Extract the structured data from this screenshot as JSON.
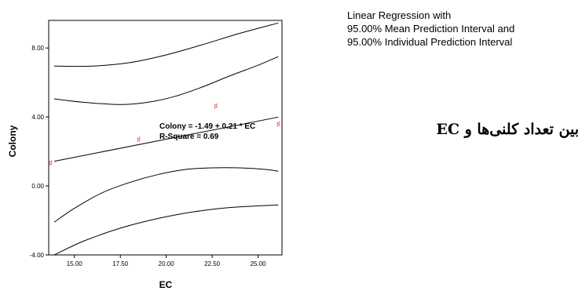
{
  "chart_data": {
    "type": "scatter",
    "xlabel": "EC",
    "ylabel": "Colony",
    "xlim": [
      13.6,
      26.3
    ],
    "ylim": [
      -4.0,
      9.6
    ],
    "x_ticks": [
      15.0,
      17.5,
      20.0,
      22.5,
      25.0
    ],
    "x_tick_labels": [
      "15.00",
      "17.50",
      "20.00",
      "22.50",
      "25.00"
    ],
    "y_ticks": [
      -4.0,
      0.0,
      4.0,
      8.0
    ],
    "y_tick_labels": [
      "-4.00",
      "0.00",
      "4.00",
      "8.00"
    ],
    "points": [
      {
        "x": 13.7,
        "y": 1.35
      },
      {
        "x": 18.5,
        "y": 2.7
      },
      {
        "x": 22.7,
        "y": 4.65
      },
      {
        "x": 26.1,
        "y": 3.6
      }
    ],
    "point_color": "#e8332b",
    "point_marker": "♯",
    "fit": {
      "intercept": -1.49,
      "slope": 0.21
    },
    "equation_label": "Colony = -1.49 + 0.21 * EC",
    "r_square_label": "R-Square = 0.69",
    "mean_interval_upper": [
      [
        13.9,
        5.05
      ],
      [
        15.5,
        4.85
      ],
      [
        17.5,
        4.72
      ],
      [
        19.0,
        4.85
      ],
      [
        20.5,
        5.2
      ],
      [
        22.0,
        5.75
      ],
      [
        23.5,
        6.4
      ],
      [
        25.0,
        7.0
      ],
      [
        26.1,
        7.5
      ]
    ],
    "mean_interval_lower": [
      [
        13.9,
        -2.1
      ],
      [
        15.0,
        -1.3
      ],
      [
        16.5,
        -0.4
      ],
      [
        18.0,
        0.2
      ],
      [
        19.5,
        0.65
      ],
      [
        21.0,
        0.95
      ],
      [
        22.5,
        1.05
      ],
      [
        24.0,
        1.05
      ],
      [
        25.5,
        0.95
      ],
      [
        26.1,
        0.85
      ]
    ],
    "prediction_interval_upper": [
      [
        13.9,
        6.95
      ],
      [
        16.0,
        6.95
      ],
      [
        18.0,
        7.15
      ],
      [
        20.0,
        7.6
      ],
      [
        22.0,
        8.2
      ],
      [
        24.0,
        8.85
      ],
      [
        26.1,
        9.45
      ]
    ],
    "prediction_interval_lower": [
      [
        13.9,
        -4.0
      ],
      [
        15.5,
        -3.2
      ],
      [
        17.5,
        -2.45
      ],
      [
        19.5,
        -1.9
      ],
      [
        21.5,
        -1.5
      ],
      [
        23.5,
        -1.25
      ],
      [
        26.1,
        -1.1
      ]
    ]
  },
  "legend": {
    "line1": "Linear Regression with",
    "line2": "95.00% Mean Prediction Interval and",
    "line3": "95.00% Individual Prediction Interval"
  },
  "persian_title": "بین تعداد کلنی‌ها و EC"
}
